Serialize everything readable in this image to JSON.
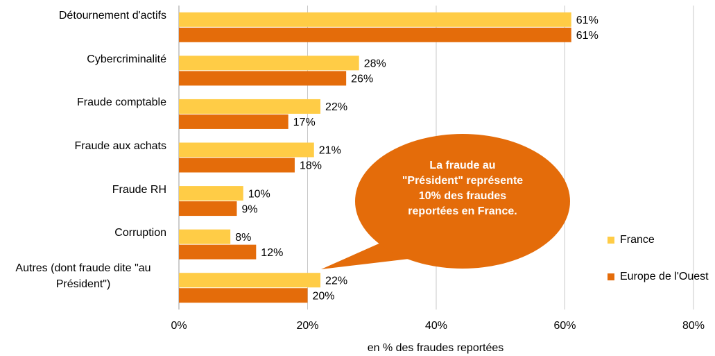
{
  "chart_data": {
    "type": "bar",
    "orientation": "horizontal",
    "categories": [
      "Détournement d'actifs",
      "Cybercriminalité",
      "Fraude comptable",
      "Fraude aux achats",
      "Fraude RH",
      "Corruption",
      "Autres (dont fraude dite \"au Président\")"
    ],
    "series": [
      {
        "name": "France",
        "color": "#ffcc46",
        "values": [
          61,
          28,
          22,
          21,
          10,
          8,
          22
        ],
        "value_labels": [
          "61%",
          "28%",
          "22%",
          "21%",
          "10%",
          "8%",
          "22%"
        ]
      },
      {
        "name": "Europe de l'Ouest",
        "color": "#e46c0a",
        "values": [
          61,
          26,
          17,
          18,
          9,
          12,
          20
        ],
        "value_labels": [
          "61%",
          "26%",
          "17%",
          "18%",
          "9%",
          "12%",
          "20%"
        ]
      }
    ],
    "xlim": [
      0,
      80
    ],
    "xticks": [
      {
        "value": 0,
        "label": "0%"
      },
      {
        "value": 20,
        "label": "20%"
      },
      {
        "value": 40,
        "label": "40%"
      },
      {
        "value": 60,
        "label": "60%"
      },
      {
        "value": 80,
        "label": "80%"
      }
    ],
    "xlabel": "en % des fraudes reportées",
    "grid": true,
    "legend": "right",
    "annotation": {
      "text": "La fraude au \"Président\" représente 10% des fraudes reportées en France.",
      "color": "#e46c0a"
    }
  }
}
